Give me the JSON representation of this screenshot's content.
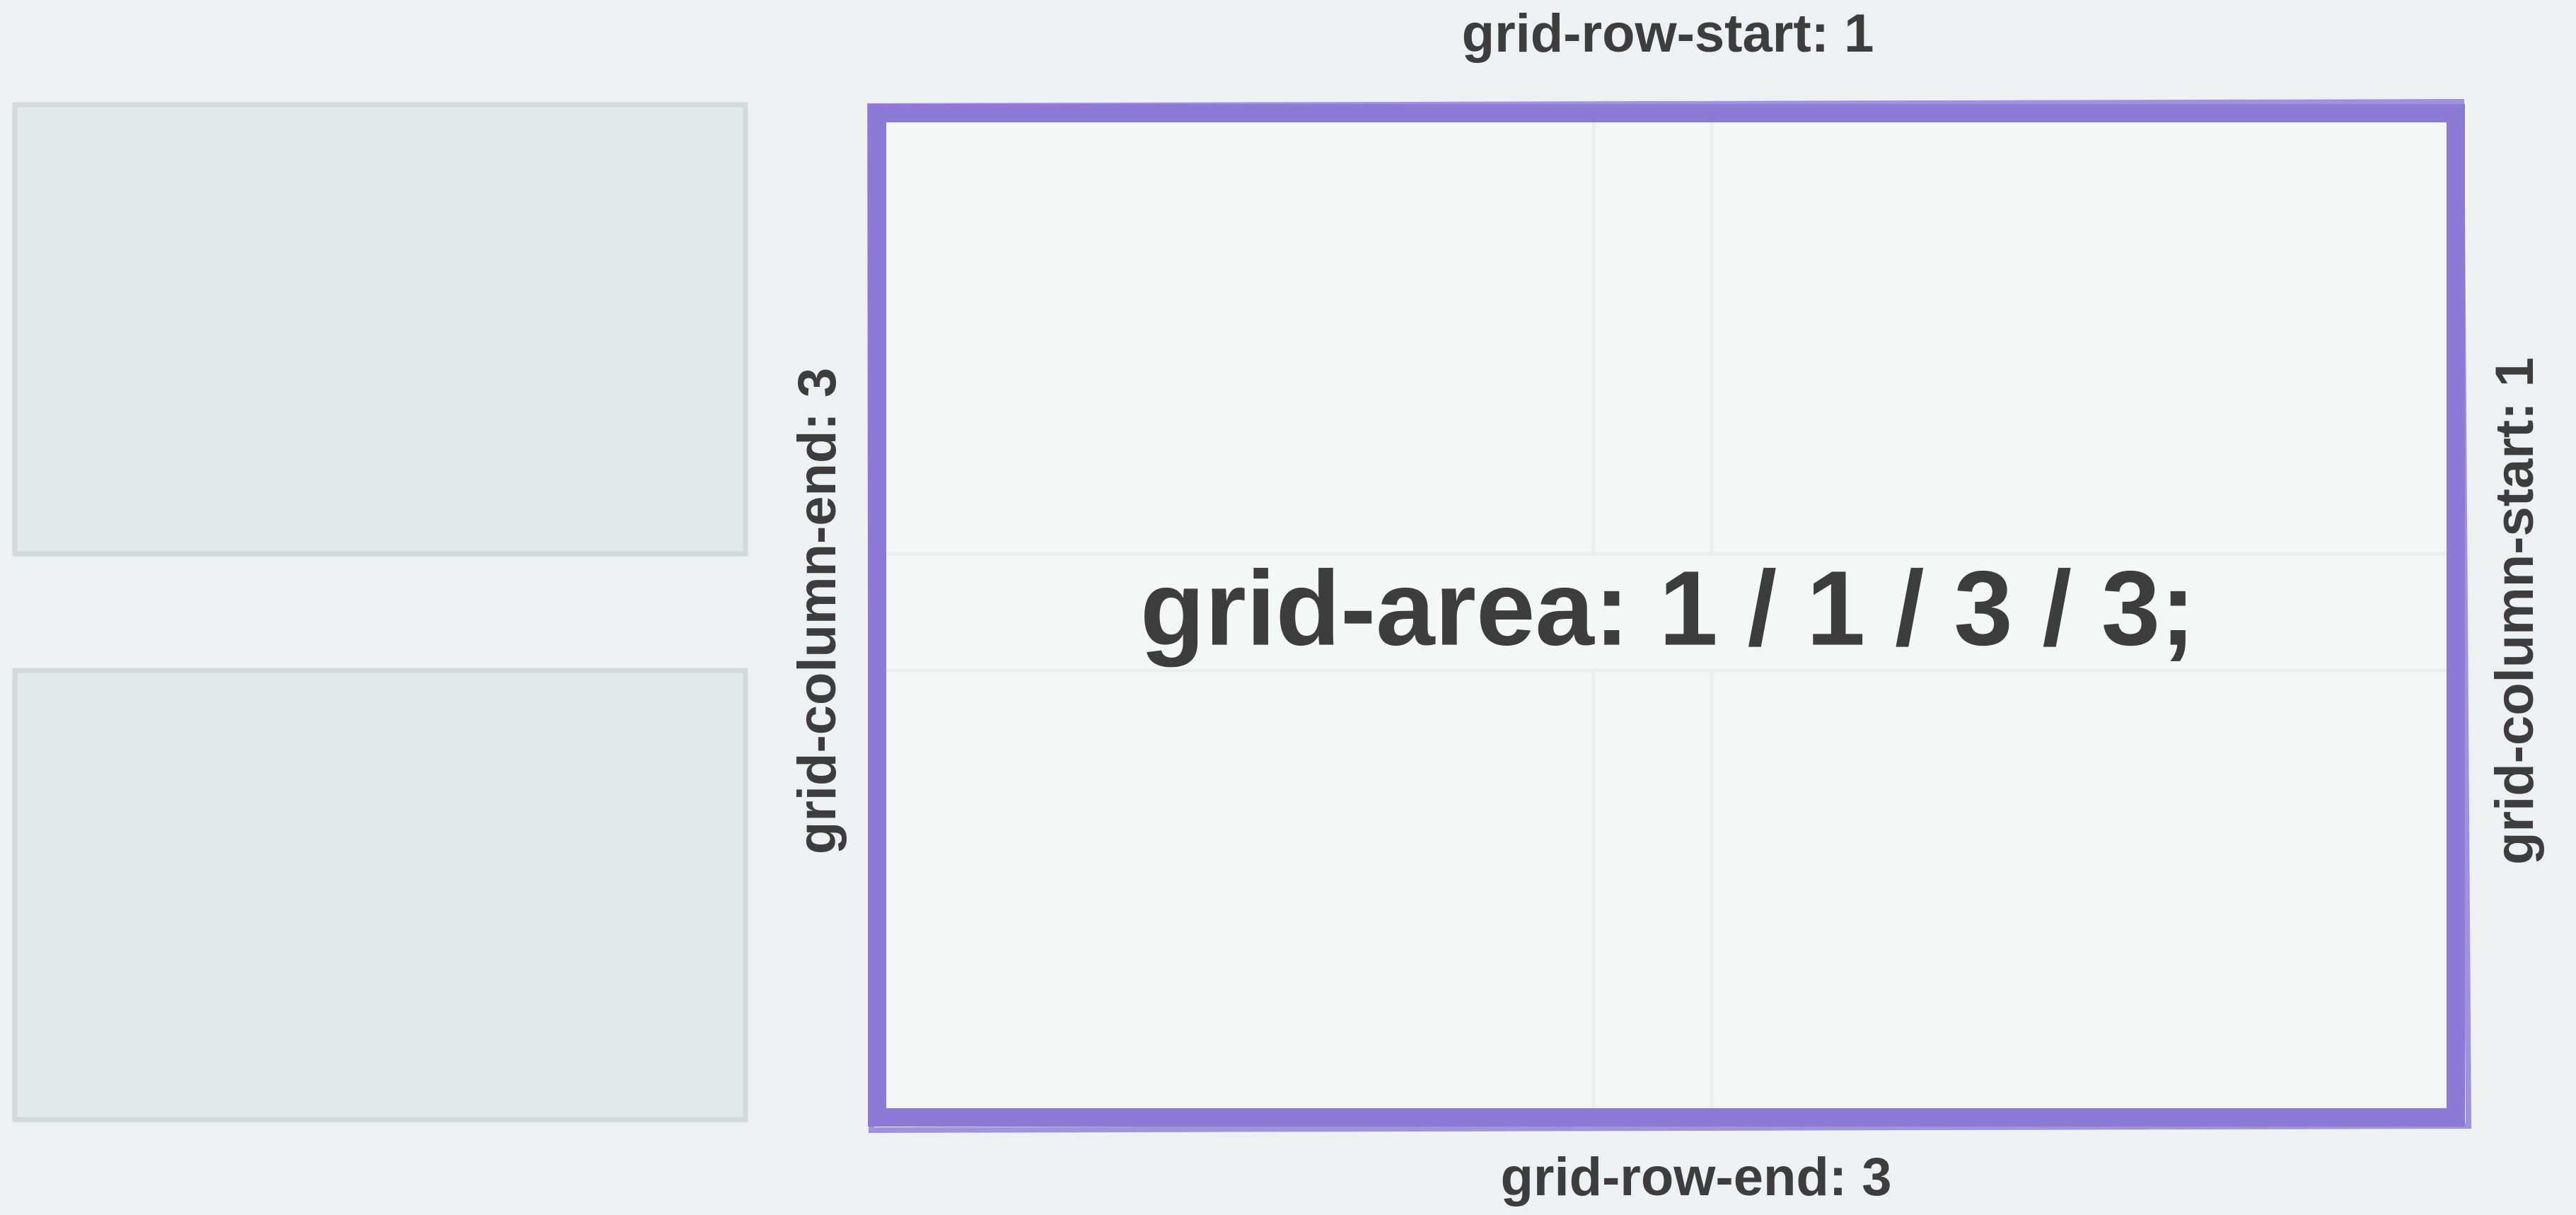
{
  "labels": {
    "top": "grid-row-start: 1",
    "bottom": "grid-row-end: 3",
    "left": "grid-column-end: 3",
    "right": "grid-column-start: 1"
  },
  "center": "grid-area: 1 / 1 / 3 / 3;"
}
